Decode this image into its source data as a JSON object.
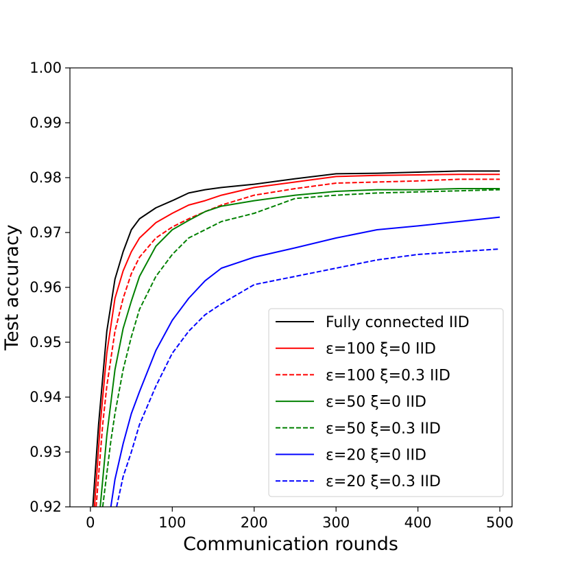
{
  "chart_data": {
    "type": "line",
    "title": "",
    "xlabel": "Communication rounds",
    "ylabel": "Test accuracy",
    "xlim": [
      -25,
      515
    ],
    "ylim": [
      0.92,
      1.0
    ],
    "xticks": [
      0,
      100,
      200,
      300,
      400,
      500
    ],
    "xtick_labels": [
      "0",
      "100",
      "200",
      "300",
      "400",
      "500"
    ],
    "yticks": [
      0.92,
      0.93,
      0.94,
      0.95,
      0.96,
      0.97,
      0.98,
      0.99,
      1.0
    ],
    "ytick_labels": [
      "0.92",
      "0.93",
      "0.94",
      "0.95",
      "0.96",
      "0.97",
      "0.98",
      "0.99",
      "1.00"
    ],
    "grid": false,
    "legend_position": "lower-right",
    "series": [
      {
        "name": "Fully connected IID",
        "color": "#000000",
        "dash": "solid",
        "x": [
          3,
          10,
          20,
          30,
          40,
          50,
          60,
          80,
          100,
          120,
          140,
          160,
          200,
          250,
          300,
          350,
          400,
          450,
          500
        ],
        "y": [
          0.92,
          0.935,
          0.952,
          0.9615,
          0.9665,
          0.9705,
          0.9725,
          0.9745,
          0.9758,
          0.9772,
          0.9778,
          0.9782,
          0.9788,
          0.9798,
          0.9807,
          0.9808,
          0.981,
          0.9812,
          0.9812
        ]
      },
      {
        "name": "ε=100 ξ=0 IID",
        "color": "#ff0000",
        "dash": "solid",
        "x": [
          5,
          12,
          20,
          30,
          40,
          50,
          60,
          80,
          100,
          120,
          140,
          160,
          200,
          250,
          300,
          350,
          400,
          450,
          500
        ],
        "y": [
          0.92,
          0.935,
          0.948,
          0.958,
          0.963,
          0.9665,
          0.969,
          0.9718,
          0.9735,
          0.975,
          0.9758,
          0.9768,
          0.9782,
          0.9792,
          0.9802,
          0.9804,
          0.9805,
          0.9806,
          0.9806
        ]
      },
      {
        "name": "ε=100 ξ=0.3 IID",
        "color": "#ff0000",
        "dash": "dashed",
        "x": [
          7,
          15,
          20,
          30,
          40,
          50,
          60,
          80,
          100,
          120,
          140,
          160,
          200,
          250,
          300,
          350,
          400,
          450,
          500
        ],
        "y": [
          0.92,
          0.935,
          0.942,
          0.952,
          0.958,
          0.9625,
          0.9655,
          0.969,
          0.971,
          0.9725,
          0.9738,
          0.975,
          0.9768,
          0.978,
          0.979,
          0.9792,
          0.9794,
          0.9797,
          0.9797
        ]
      },
      {
        "name": "ε=50 ξ=0 IID",
        "color": "#008000",
        "dash": "solid",
        "x": [
          12,
          20,
          30,
          40,
          50,
          60,
          80,
          100,
          120,
          140,
          160,
          200,
          250,
          300,
          350,
          400,
          450,
          500
        ],
        "y": [
          0.92,
          0.933,
          0.945,
          0.9525,
          0.9575,
          0.962,
          0.9675,
          0.9705,
          0.9722,
          0.9738,
          0.9748,
          0.9758,
          0.9768,
          0.9775,
          0.9778,
          0.9778,
          0.978,
          0.978
        ]
      },
      {
        "name": "ε=50 ξ=0.3 IID",
        "color": "#008000",
        "dash": "dashed",
        "x": [
          15,
          25,
          30,
          40,
          50,
          60,
          80,
          100,
          120,
          140,
          160,
          200,
          250,
          300,
          350,
          400,
          450,
          500
        ],
        "y": [
          0.92,
          0.932,
          0.937,
          0.945,
          0.951,
          0.956,
          0.962,
          0.966,
          0.969,
          0.9705,
          0.972,
          0.9735,
          0.9762,
          0.9768,
          0.9772,
          0.9774,
          0.9776,
          0.9778
        ]
      },
      {
        "name": "ε=20 ξ=0 IID",
        "color": "#0000ff",
        "dash": "solid",
        "x": [
          25,
          30,
          40,
          50,
          60,
          80,
          100,
          120,
          140,
          160,
          200,
          250,
          300,
          350,
          400,
          450,
          500
        ],
        "y": [
          0.92,
          0.925,
          0.9315,
          0.937,
          0.941,
          0.9485,
          0.954,
          0.958,
          0.9612,
          0.9635,
          0.9655,
          0.9672,
          0.969,
          0.9705,
          0.9712,
          0.972,
          0.9728
        ]
      },
      {
        "name": "ε=20 ξ=0.3 IID",
        "color": "#0000ff",
        "dash": "dashed",
        "x": [
          32,
          40,
          50,
          60,
          80,
          100,
          120,
          140,
          160,
          200,
          250,
          300,
          350,
          400,
          450,
          500
        ],
        "y": [
          0.92,
          0.9255,
          0.93,
          0.935,
          0.942,
          0.948,
          0.952,
          0.955,
          0.957,
          0.9605,
          0.962,
          0.9635,
          0.965,
          0.966,
          0.9665,
          0.967
        ]
      }
    ]
  }
}
